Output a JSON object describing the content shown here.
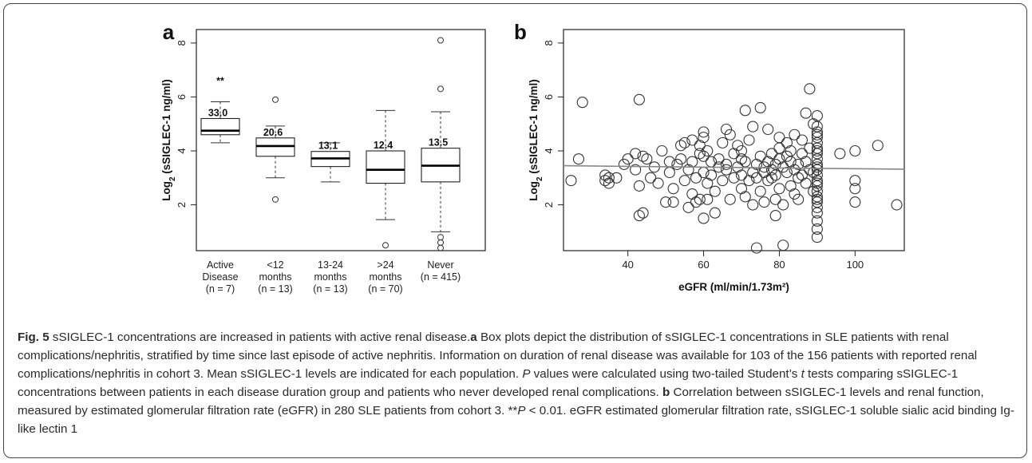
{
  "chart_data": [
    {
      "type": "box",
      "panel": "a",
      "ylabel": "Log2 (sSIGLEC-1 ng/ml)",
      "ylim": [
        0.3,
        8.5
      ],
      "yticks": [
        2,
        4,
        6,
        8
      ],
      "categories": [
        [
          "Active",
          "Disease",
          "(n = 7)"
        ],
        [
          "<12",
          "months",
          "(n = 13)"
        ],
        [
          "13-24",
          "months",
          "(n = 13)"
        ],
        [
          ">24",
          "months",
          "(n = 70)"
        ],
        [
          "Never",
          "(n = 415)"
        ]
      ],
      "boxes": [
        {
          "whisker_low": 4.3,
          "q1": 4.6,
          "median": 4.75,
          "q3": 5.2,
          "whisker_high": 5.82,
          "outliers": [],
          "mean_label": "33.0",
          "significance": "**"
        },
        {
          "whisker_low": 3.0,
          "q1": 3.8,
          "median": 4.18,
          "q3": 4.48,
          "whisker_high": 4.92,
          "outliers": [
            5.9,
            2.2
          ],
          "mean_label": "20.6",
          "significance": ""
        },
        {
          "whisker_low": 2.85,
          "q1": 3.42,
          "median": 3.72,
          "q3": 3.98,
          "whisker_high": 4.3,
          "outliers": [],
          "mean_label": "13.1",
          "significance": ""
        },
        {
          "whisker_low": 1.45,
          "q1": 2.8,
          "median": 3.3,
          "q3": 4.0,
          "whisker_high": 5.5,
          "outliers": [
            0.5
          ],
          "mean_label": "12.4",
          "significance": ""
        },
        {
          "whisker_low": 1.0,
          "q1": 2.85,
          "median": 3.45,
          "q3": 4.1,
          "whisker_high": 5.45,
          "outliers": [
            8.1,
            6.3,
            0.8,
            0.6,
            0.4
          ],
          "mean_label": "13.5",
          "significance": ""
        }
      ]
    },
    {
      "type": "scatter",
      "panel": "b",
      "xlabel": "eGFR (ml/min/1.73m²)",
      "ylabel": "Log2 (sSIGLEC-1 ng/ml)",
      "xlim": [
        23,
        113
      ],
      "ylim": [
        0.3,
        8.5
      ],
      "xticks": [
        40,
        60,
        80,
        100
      ],
      "yticks": [
        2,
        4,
        6,
        8
      ],
      "regression": {
        "x": [
          23,
          113
        ],
        "y": [
          3.45,
          3.32
        ]
      },
      "points": [
        [
          25,
          2.9
        ],
        [
          27,
          3.7
        ],
        [
          28,
          5.8
        ],
        [
          34,
          3.1
        ],
        [
          34,
          2.9
        ],
        [
          35,
          2.8
        ],
        [
          35,
          3.0
        ],
        [
          37,
          3.0
        ],
        [
          39,
          3.5
        ],
        [
          40,
          3.7
        ],
        [
          42,
          3.9
        ],
        [
          42,
          3.3
        ],
        [
          43,
          5.9
        ],
        [
          43,
          2.7
        ],
        [
          43,
          1.6
        ],
        [
          44,
          1.7
        ],
        [
          44,
          3.8
        ],
        [
          45,
          3.7
        ],
        [
          46,
          3.0
        ],
        [
          47,
          3.4
        ],
        [
          48,
          2.8
        ],
        [
          49,
          4.0
        ],
        [
          50,
          2.1
        ],
        [
          51,
          3.6
        ],
        [
          51,
          3.2
        ],
        [
          52,
          2.6
        ],
        [
          52,
          2.1
        ],
        [
          53,
          3.5
        ],
        [
          54,
          4.2
        ],
        [
          54,
          3.7
        ],
        [
          55,
          2.9
        ],
        [
          55,
          4.3
        ],
        [
          56,
          3.3
        ],
        [
          56,
          1.9
        ],
        [
          57,
          2.4
        ],
        [
          57,
          3.6
        ],
        [
          57,
          4.4
        ],
        [
          58,
          3.0
        ],
        [
          58,
          2.1
        ],
        [
          59,
          3.9
        ],
        [
          59,
          2.2
        ],
        [
          59,
          4.2
        ],
        [
          60,
          3.8
        ],
        [
          60,
          4.7
        ],
        [
          60,
          4.5
        ],
        [
          60,
          3.2
        ],
        [
          60,
          1.5
        ],
        [
          61,
          4.0
        ],
        [
          61,
          2.8
        ],
        [
          61,
          2.2
        ],
        [
          62,
          3.1
        ],
        [
          62,
          3.6
        ],
        [
          63,
          2.5
        ],
        [
          63,
          1.7
        ],
        [
          64,
          3.4
        ],
        [
          64,
          3.7
        ],
        [
          65,
          2.9
        ],
        [
          65,
          4.3
        ],
        [
          66,
          3.5
        ],
        [
          66,
          4.8
        ],
        [
          66,
          3.3
        ],
        [
          67,
          2.2
        ],
        [
          67,
          4.6
        ],
        [
          68,
          3.0
        ],
        [
          68,
          3.9
        ],
        [
          69,
          3.4
        ],
        [
          69,
          4.2
        ],
        [
          70,
          2.6
        ],
        [
          70,
          3.7
        ],
        [
          70,
          4.0
        ],
        [
          70,
          3.1
        ],
        [
          71,
          2.3
        ],
        [
          71,
          5.5
        ],
        [
          71,
          3.6
        ],
        [
          72,
          2.9
        ],
        [
          72,
          4.4
        ],
        [
          73,
          3.2
        ],
        [
          73,
          2.0
        ],
        [
          73,
          4.9
        ],
        [
          74,
          3.5
        ],
        [
          74,
          3.0
        ],
        [
          74,
          0.4
        ],
        [
          75,
          5.6
        ],
        [
          75,
          2.5
        ],
        [
          75,
          3.8
        ],
        [
          76,
          3.2
        ],
        [
          76,
          3.4
        ],
        [
          76,
          2.1
        ],
        [
          77,
          2.9
        ],
        [
          77,
          3.6
        ],
        [
          77,
          4.8
        ],
        [
          78,
          3.3
        ],
        [
          78,
          3.0
        ],
        [
          78,
          3.9
        ],
        [
          79,
          3.5
        ],
        [
          79,
          2.2
        ],
        [
          79,
          1.6
        ],
        [
          79,
          3.1
        ],
        [
          80,
          4.1
        ],
        [
          80,
          3.7
        ],
        [
          80,
          4.5
        ],
        [
          80,
          2.6
        ],
        [
          81,
          3.4
        ],
        [
          81,
          0.5
        ],
        [
          81,
          2.0
        ],
        [
          82,
          3.8
        ],
        [
          82,
          4.3
        ],
        [
          82,
          3.2
        ],
        [
          83,
          2.7
        ],
        [
          83,
          3.6
        ],
        [
          83,
          4.0
        ],
        [
          84,
          3.3
        ],
        [
          84,
          2.4
        ],
        [
          84,
          4.6
        ],
        [
          85,
          3.5
        ],
        [
          85,
          3.0
        ],
        [
          85,
          2.2
        ],
        [
          86,
          3.9
        ],
        [
          86,
          4.4
        ],
        [
          86,
          3.1
        ],
        [
          87,
          2.8
        ],
        [
          87,
          3.6
        ],
        [
          87,
          5.4
        ],
        [
          88,
          3.3
        ],
        [
          88,
          4.1
        ],
        [
          88,
          6.3
        ],
        [
          89,
          3.2
        ],
        [
          89,
          2.5
        ],
        [
          89,
          5.0
        ],
        [
          90,
          4.9
        ],
        [
          90,
          4.7
        ],
        [
          90,
          4.5
        ],
        [
          90,
          4.3
        ],
        [
          90,
          4.1
        ],
        [
          90,
          3.9
        ],
        [
          90,
          3.7
        ],
        [
          90,
          3.5
        ],
        [
          90,
          3.3
        ],
        [
          90,
          3.1
        ],
        [
          90,
          2.9
        ],
        [
          90,
          2.7
        ],
        [
          90,
          2.5
        ],
        [
          90,
          2.3
        ],
        [
          90,
          2.1
        ],
        [
          90,
          1.9
        ],
        [
          90,
          1.7
        ],
        [
          90,
          1.4
        ],
        [
          90,
          1.1
        ],
        [
          90,
          0.8
        ],
        [
          90,
          5.3
        ],
        [
          90,
          4.6
        ],
        [
          90,
          4.0
        ],
        [
          90,
          3.4
        ],
        [
          90,
          2.8
        ],
        [
          90,
          2.2
        ],
        [
          96,
          3.9
        ],
        [
          100,
          4.0
        ],
        [
          100,
          2.9
        ],
        [
          100,
          2.6
        ],
        [
          100,
          2.1
        ],
        [
          106,
          4.2
        ],
        [
          111,
          2.0
        ]
      ]
    }
  ],
  "caption": {
    "fig_label": "Fig. 5",
    "title": " sSIGLEC-1 concentrations are increased in patients with active renal disease.",
    "a_label": "a",
    "a_text_1": " Box plots depict the distribution of sSIGLEC-1 concentrations in SLE patients with renal complications/nephritis, stratified by time since last episode of active nephritis. Information on duration of renal disease was available for 103 of the 156 patients with reported renal complications/nephritis in cohort 3. Mean sSIGLEC-1 levels are indicated for each population. ",
    "p_italic": "P",
    "a_text_2": " values were calculated using two-tailed Student’s ",
    "t_italic": "t",
    "a_text_3": " tests comparing sSIGLEC-1 concentrations between patients in each disease duration group and patients who never developed renal complications. ",
    "b_label": "b",
    "b_text_1": " Correlation between sSIGLEC-1 levels and renal function, measured by estimated glomerular filtration rate (eGFR) in 280 SLE patients from cohort 3. **",
    "p2_italic": "P",
    "b_text_2": " < 0.01. eGFR estimated glomerular filtration rate, sSIGLEC-1 soluble sialic acid binding Ig-like lectin 1"
  }
}
